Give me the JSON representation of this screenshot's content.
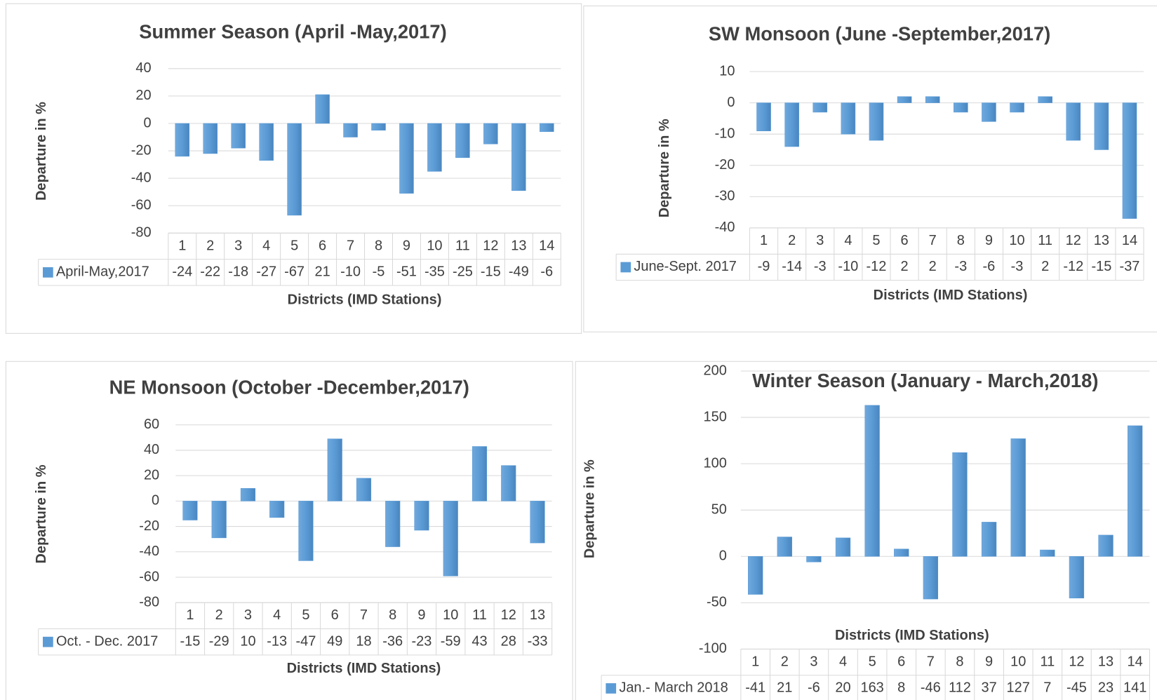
{
  "chart_data": [
    {
      "type": "bar",
      "title": "Summer Season (April -May,2017)",
      "x_label": "Districts (IMD Stations)",
      "y_label": "Departure in %",
      "categories": [
        "1",
        "2",
        "3",
        "4",
        "5",
        "6",
        "7",
        "8",
        "9",
        "10",
        "11",
        "12",
        "13",
        "14"
      ],
      "series": [
        {
          "name": "April-May,2017",
          "color": "#5b9bd5",
          "values": [
            -24,
            -22,
            -18,
            -27,
            -67,
            21,
            -10,
            -5,
            -51,
            -35,
            -25,
            -15,
            -49,
            -6
          ]
        }
      ],
      "ylim": [
        -80,
        40
      ],
      "yticks": [
        -80,
        -60,
        -40,
        -20,
        0,
        20,
        40
      ],
      "grid": true
    },
    {
      "type": "bar",
      "title": "SW Monsoon (June -September,2017)",
      "x_label": "Districts (IMD Stations)",
      "y_label": "Departure in %",
      "categories": [
        "1",
        "2",
        "3",
        "4",
        "5",
        "6",
        "7",
        "8",
        "9",
        "10",
        "11",
        "12",
        "13",
        "14"
      ],
      "series": [
        {
          "name": "June-Sept. 2017",
          "color": "#5b9bd5",
          "values": [
            -9,
            -14,
            -3,
            -10,
            -12,
            2,
            2,
            -3,
            -6,
            -3,
            2,
            -12,
            -15,
            -37
          ]
        }
      ],
      "ylim": [
        -40,
        10
      ],
      "yticks": [
        -40,
        -30,
        -20,
        -10,
        0,
        10
      ],
      "grid": true
    },
    {
      "type": "bar",
      "title": "NE Monsoon (October -December,2017)",
      "x_label": "Districts (IMD Stations)",
      "y_label": "Departure in %",
      "categories": [
        "1",
        "2",
        "3",
        "4",
        "5",
        "6",
        "7",
        "8",
        "9",
        "10",
        "11",
        "12",
        "13"
      ],
      "series": [
        {
          "name": "Oct. -  Dec. 2017",
          "color": "#5b9bd5",
          "values": [
            -15,
            -29,
            10,
            -13,
            -47,
            49,
            18,
            -36,
            -23,
            -59,
            43,
            28,
            -33
          ]
        }
      ],
      "ylim": [
        -80,
        60
      ],
      "yticks": [
        -80,
        -60,
        -40,
        -20,
        0,
        20,
        40,
        60
      ],
      "grid": true
    },
    {
      "type": "bar",
      "title": "Winter Season (January - March,2018)",
      "x_label": "Districts (IMD Stations)",
      "y_label": "Departure in %",
      "categories": [
        "1",
        "2",
        "3",
        "4",
        "5",
        "6",
        "7",
        "8",
        "9",
        "10",
        "11",
        "12",
        "13",
        "14"
      ],
      "series": [
        {
          "name": "Jan.- March 2018",
          "color": "#5b9bd5",
          "values": [
            -41,
            21,
            -6,
            20,
            163,
            8,
            -46,
            112,
            37,
            127,
            7,
            -45,
            23,
            141
          ]
        }
      ],
      "ylim": [
        -100,
        200
      ],
      "yticks": [
        -100,
        -50,
        0,
        50,
        100,
        150,
        200
      ],
      "grid": true
    }
  ]
}
